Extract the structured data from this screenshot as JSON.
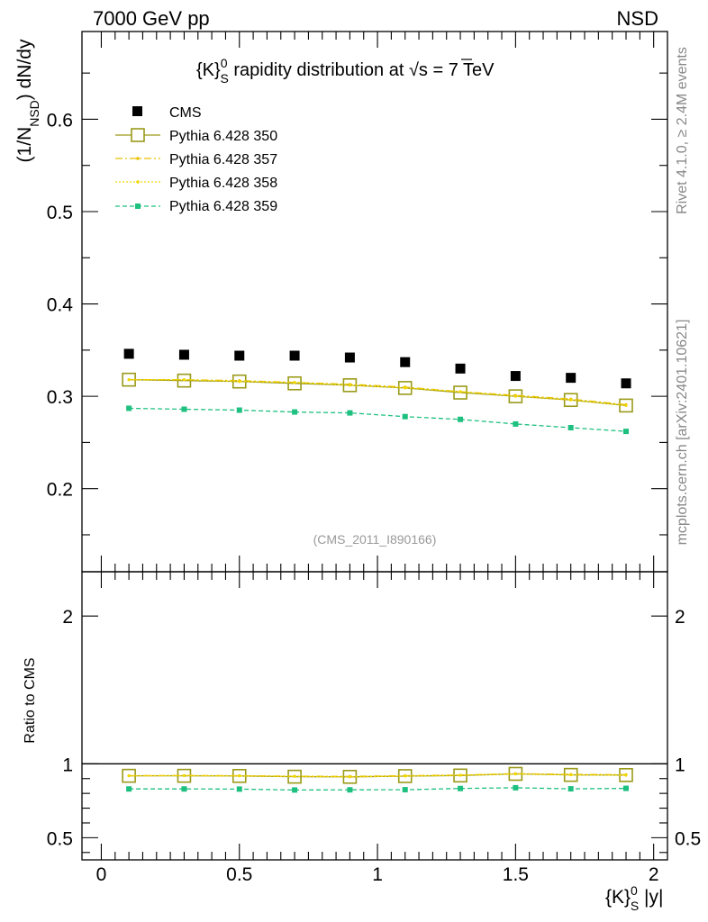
{
  "header": {
    "left": "7000 GeV pp",
    "right": "NSD"
  },
  "side_labels": {
    "rivet": "Rivet 4.1.0, ≥ 2.4M events",
    "mcplots": "mcplots.cern.ch [arXiv:2401.10621]"
  },
  "chart_data": [
    {
      "panel": "main",
      "type": "line",
      "title_parts": {
        "pre": "{K}",
        "sup": "0",
        "sub": "S",
        "mid": " rapidity distribution at ",
        "sqrt": "√s",
        "post": " = 7 TeV"
      },
      "ylabel_parts": {
        "pre": "(1/N",
        "sub": "NSD",
        "post": ") dN/dy"
      },
      "watermark": "(CMS_2011_I890166)",
      "x": [
        0.1,
        0.3,
        0.5,
        0.7,
        0.9,
        1.1,
        1.3,
        1.5,
        1.7,
        1.9
      ],
      "xlim": [
        -0.07,
        2.05
      ],
      "ylim": [
        0.11,
        0.695
      ],
      "yticks": [
        0.2,
        0.3,
        0.4,
        0.5,
        0.6
      ],
      "ytick_labels": [
        "0.2",
        "0.3",
        "0.4",
        "0.5",
        "0.6"
      ],
      "series": [
        {
          "name": "CMS",
          "style": "data",
          "color": "#000000",
          "values": [
            0.346,
            0.345,
            0.344,
            0.344,
            0.342,
            0.337,
            0.33,
            0.322,
            0.32,
            0.314
          ]
        },
        {
          "name": "Pythia 6.428 350",
          "style": "open-square-solid",
          "color": "#9a9a1a",
          "values": [
            0.318,
            0.317,
            0.316,
            0.314,
            0.312,
            0.309,
            0.304,
            0.3,
            0.296,
            0.29
          ]
        },
        {
          "name": "Pythia 6.428 357",
          "style": "dashdot",
          "color": "#e8c000",
          "values": [
            0.318,
            0.318,
            0.317,
            0.315,
            0.313,
            0.31,
            0.305,
            0.301,
            0.297,
            0.291
          ]
        },
        {
          "name": "Pythia 6.428 358",
          "style": "dotted",
          "color": "#f0d800",
          "values": [
            0.318,
            0.318,
            0.316,
            0.315,
            0.312,
            0.309,
            0.305,
            0.3,
            0.296,
            0.29
          ]
        },
        {
          "name": "Pythia 6.428 359",
          "style": "dashed-square",
          "color": "#1ec080",
          "values": [
            0.287,
            0.286,
            0.285,
            0.283,
            0.282,
            0.278,
            0.275,
            0.27,
            0.266,
            0.262
          ]
        }
      ]
    },
    {
      "panel": "ratio",
      "type": "line",
      "ylabel": "Ratio to CMS",
      "xlabel_parts": {
        "pre": "{K}",
        "sup": "0",
        "sub": "S",
        "post": " |y|"
      },
      "x": [
        0.1,
        0.3,
        0.5,
        0.7,
        0.9,
        1.1,
        1.3,
        1.5,
        1.7,
        1.9
      ],
      "xlim": [
        -0.07,
        2.05
      ],
      "ylim": [
        0.35,
        2.3
      ],
      "xticks": [
        0,
        0.5,
        1,
        1.5,
        2
      ],
      "xtick_labels": [
        "0",
        "0.5",
        "1",
        "1.5",
        "2"
      ],
      "yticks": [
        0.5,
        1,
        2
      ],
      "ytick_labels": [
        "0.5",
        "1",
        "2"
      ],
      "reference": 1.0,
      "series": [
        {
          "name": "Pythia 6.428 350",
          "style": "open-square-solid",
          "color": "#9a9a1a",
          "values": [
            0.919,
            0.919,
            0.918,
            0.913,
            0.912,
            0.917,
            0.921,
            0.932,
            0.925,
            0.924
          ]
        },
        {
          "name": "Pythia 6.428 357",
          "style": "dashdot",
          "color": "#e8c000",
          "values": [
            0.92,
            0.921,
            0.92,
            0.916,
            0.915,
            0.92,
            0.924,
            0.934,
            0.928,
            0.927
          ]
        },
        {
          "name": "Pythia 6.428 358",
          "style": "dotted",
          "color": "#f0d800",
          "values": [
            0.919,
            0.92,
            0.918,
            0.915,
            0.912,
            0.917,
            0.923,
            0.931,
            0.925,
            0.923
          ]
        },
        {
          "name": "Pythia 6.428 359",
          "style": "dashed-square",
          "color": "#1ec080",
          "values": [
            0.83,
            0.83,
            0.829,
            0.823,
            0.824,
            0.825,
            0.833,
            0.838,
            0.831,
            0.834
          ]
        }
      ]
    }
  ]
}
